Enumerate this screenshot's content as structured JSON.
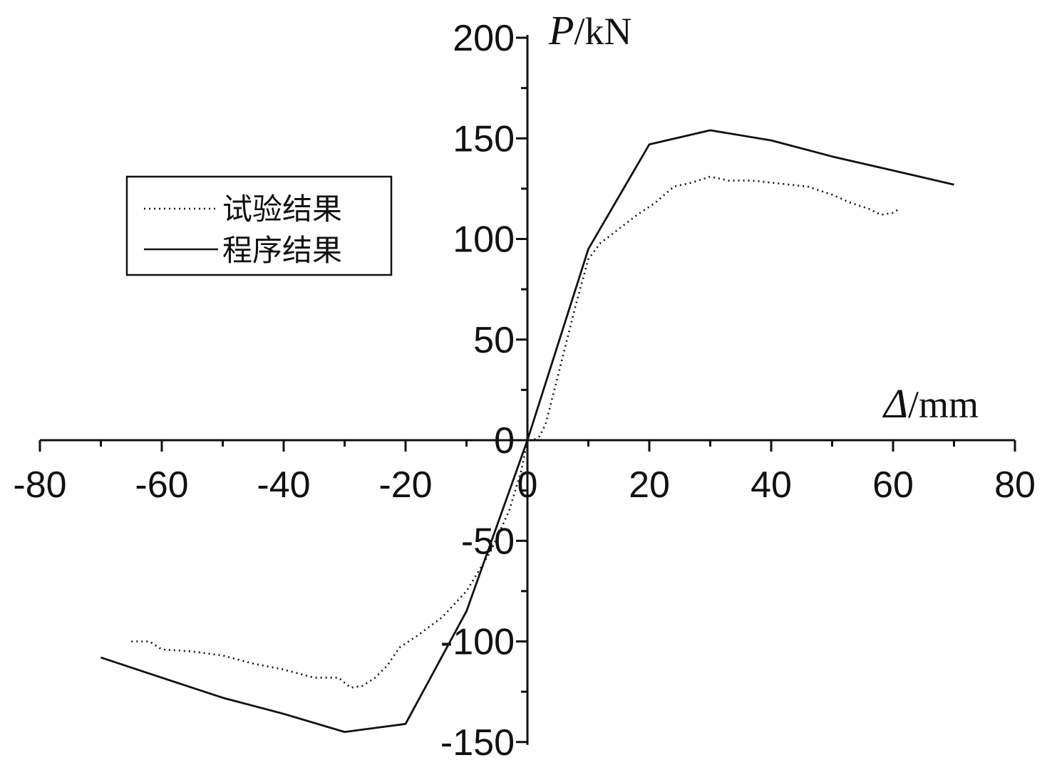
{
  "chart_data": {
    "type": "line",
    "x_axis": {
      "label_symbol": "Δ",
      "label_unit": "/mm",
      "range": [
        -80,
        80
      ],
      "ticks": [
        -80,
        -60,
        -40,
        -20,
        0,
        20,
        40,
        60,
        80
      ],
      "tick_labels": [
        "-80",
        "-60",
        "-40",
        "-20",
        "0",
        "20",
        "40",
        "60",
        "80"
      ]
    },
    "y_axis": {
      "label_symbol": "P",
      "label_unit": "/kN",
      "range": [
        -150,
        200
      ],
      "ticks": [
        -150,
        -100,
        -50,
        0,
        50,
        100,
        150,
        200
      ],
      "tick_labels": [
        "-150",
        "-100",
        "-50",
        "0",
        "50",
        "100",
        "150",
        "200"
      ]
    },
    "grid": false,
    "legend_position": "left",
    "series": [
      {
        "name": "试验结果",
        "style": "dotted",
        "color": "#111111",
        "points": [
          [
            -65,
            -100
          ],
          [
            -62,
            -100
          ],
          [
            -60,
            -104
          ],
          [
            -55,
            -105
          ],
          [
            -50,
            -107
          ],
          [
            -45,
            -111
          ],
          [
            -40,
            -114
          ],
          [
            -35,
            -118
          ],
          [
            -31,
            -118
          ],
          [
            -29,
            -123
          ],
          [
            -27,
            -122
          ],
          [
            -25,
            -118
          ],
          [
            -23,
            -112
          ],
          [
            -21,
            -103
          ],
          [
            -18,
            -97
          ],
          [
            -14,
            -88
          ],
          [
            -10,
            -75
          ],
          [
            -6,
            -55
          ],
          [
            -3,
            -35
          ],
          [
            -1,
            -15
          ],
          [
            0,
            0
          ],
          [
            1,
            0
          ],
          [
            2,
            2
          ],
          [
            3,
            8
          ],
          [
            5,
            32
          ],
          [
            8,
            68
          ],
          [
            10,
            90
          ],
          [
            12,
            98
          ],
          [
            15,
            105
          ],
          [
            18,
            112
          ],
          [
            21,
            118
          ],
          [
            24,
            126
          ],
          [
            27,
            128
          ],
          [
            30,
            131
          ],
          [
            33,
            129
          ],
          [
            37,
            129
          ],
          [
            40,
            128
          ],
          [
            43,
            127
          ],
          [
            46,
            126
          ],
          [
            50,
            122
          ],
          [
            53,
            118
          ],
          [
            56,
            115
          ],
          [
            58,
            112
          ],
          [
            60,
            113
          ],
          [
            61,
            115
          ]
        ]
      },
      {
        "name": "程序结果",
        "style": "solid",
        "color": "#111111",
        "points": [
          [
            -70,
            -108
          ],
          [
            -60,
            -118
          ],
          [
            -50,
            -128
          ],
          [
            -40,
            -136
          ],
          [
            -30,
            -145
          ],
          [
            -20,
            -141
          ],
          [
            -10,
            -85
          ],
          [
            0,
            0
          ],
          [
            10,
            95
          ],
          [
            20,
            147
          ],
          [
            30,
            154
          ],
          [
            40,
            149
          ],
          [
            50,
            141
          ],
          [
            60,
            134
          ],
          [
            70,
            127
          ]
        ]
      }
    ]
  }
}
